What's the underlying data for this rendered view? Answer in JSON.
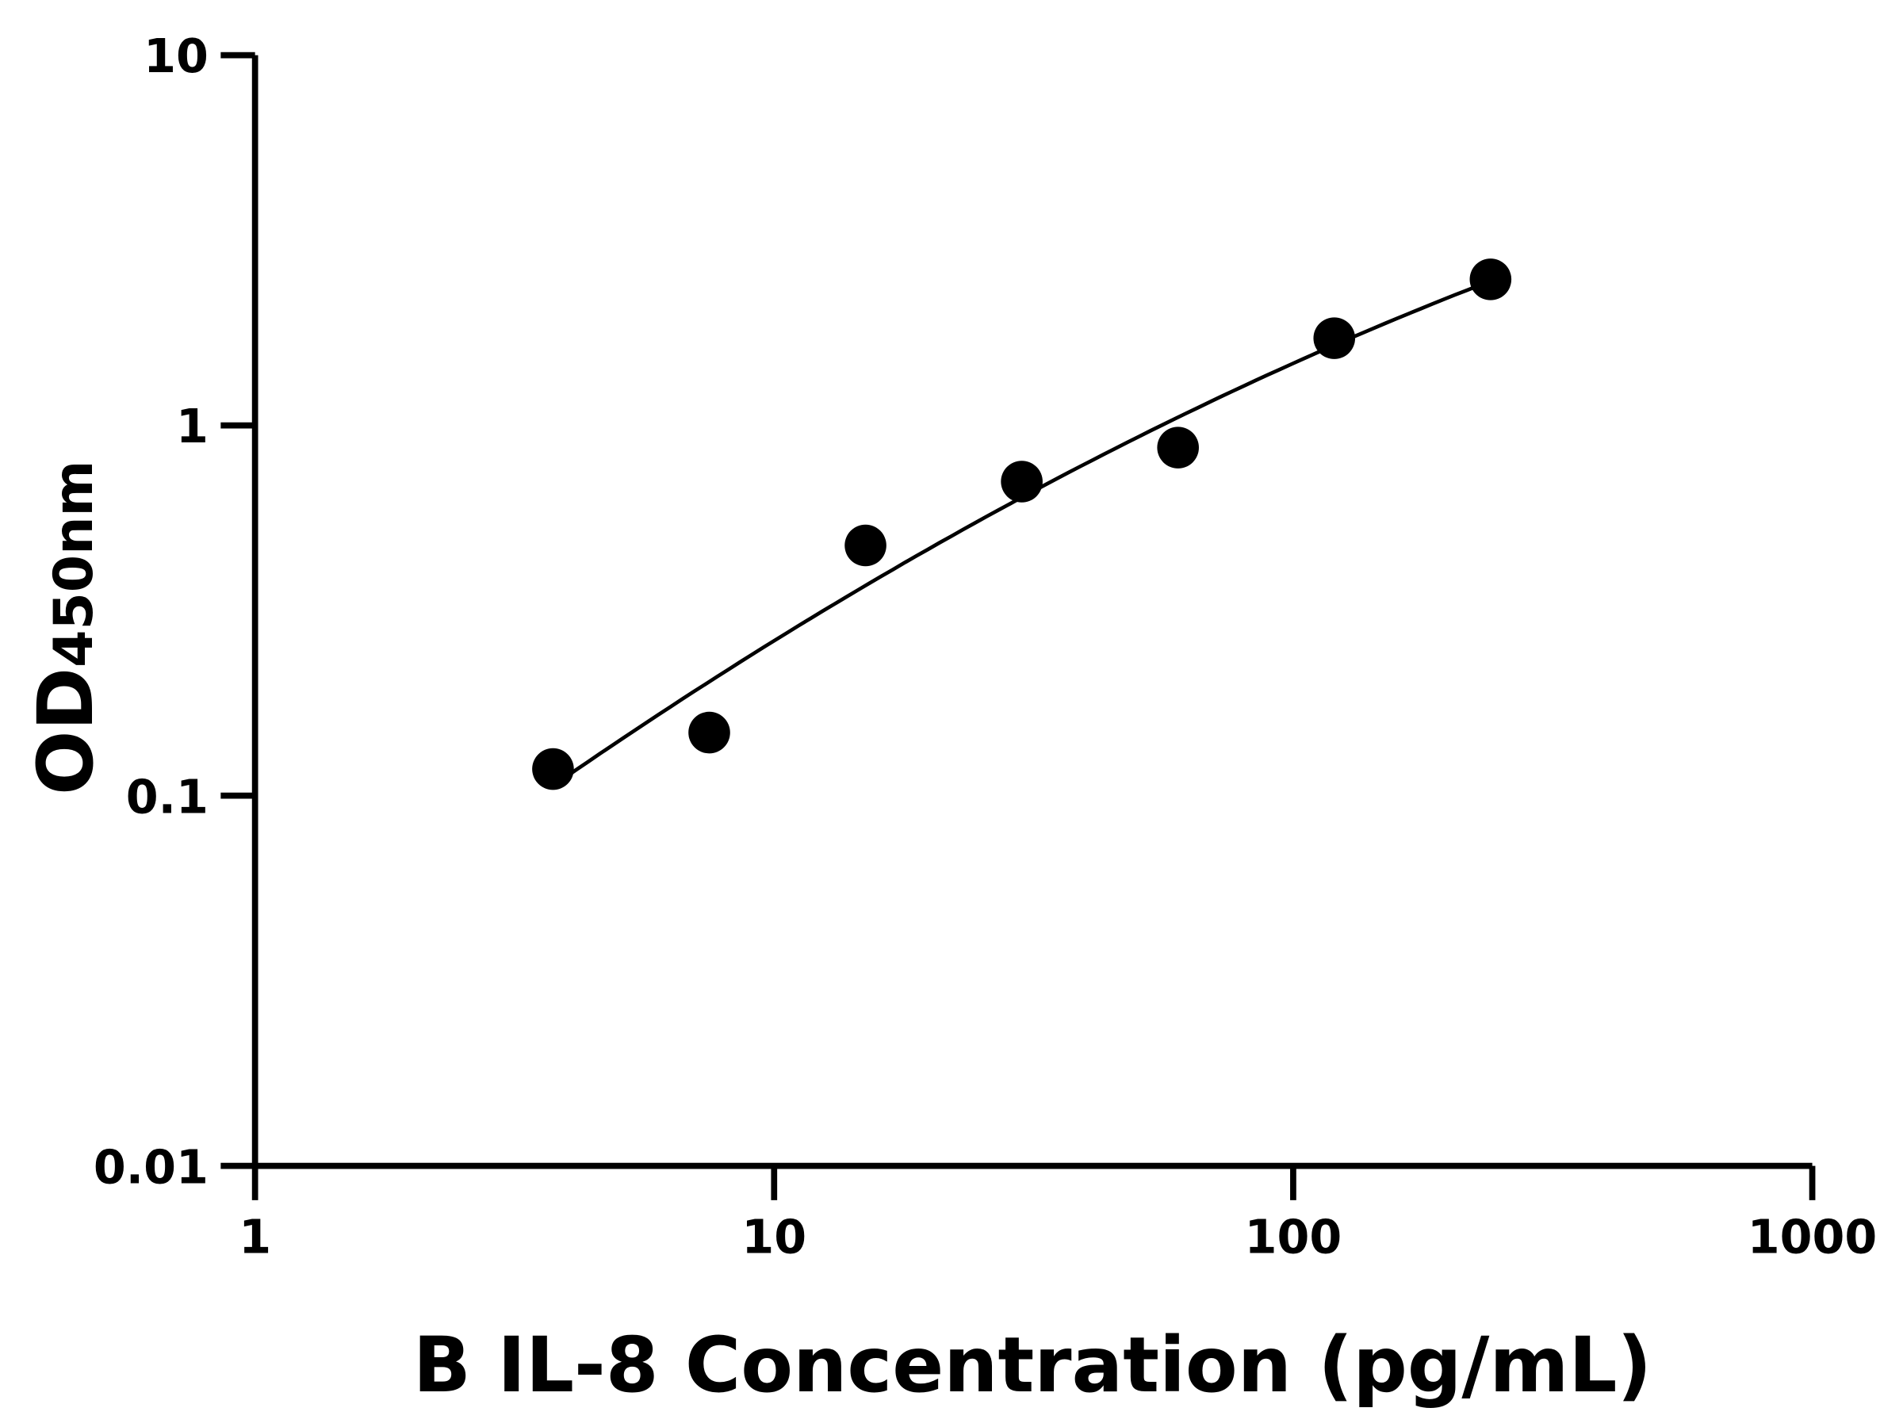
{
  "chart_data": {
    "type": "scatter",
    "title": "",
    "xlabel": "B IL-8 Concentration (pg/mL)",
    "ylabel": "OD",
    "ylabel_subscript": "450nm",
    "xscale": "log",
    "yscale": "log",
    "xlim": [
      1,
      1000
    ],
    "ylim": [
      0.01,
      10
    ],
    "xticks": [
      "1",
      "10",
      "100",
      "1000"
    ],
    "yticks": [
      "0.01",
      "0.1",
      "1",
      "10"
    ],
    "grid": false,
    "legend": "none",
    "series": [
      {
        "x": [
          3.75,
          7.5,
          15,
          30,
          60,
          120,
          240
        ],
        "y": [
          0.118,
          0.148,
          0.474,
          0.705,
          0.871,
          1.72,
          2.48
        ],
        "marker": "filled-circle",
        "fit_line": true,
        "color": "#000000"
      }
    ]
  }
}
